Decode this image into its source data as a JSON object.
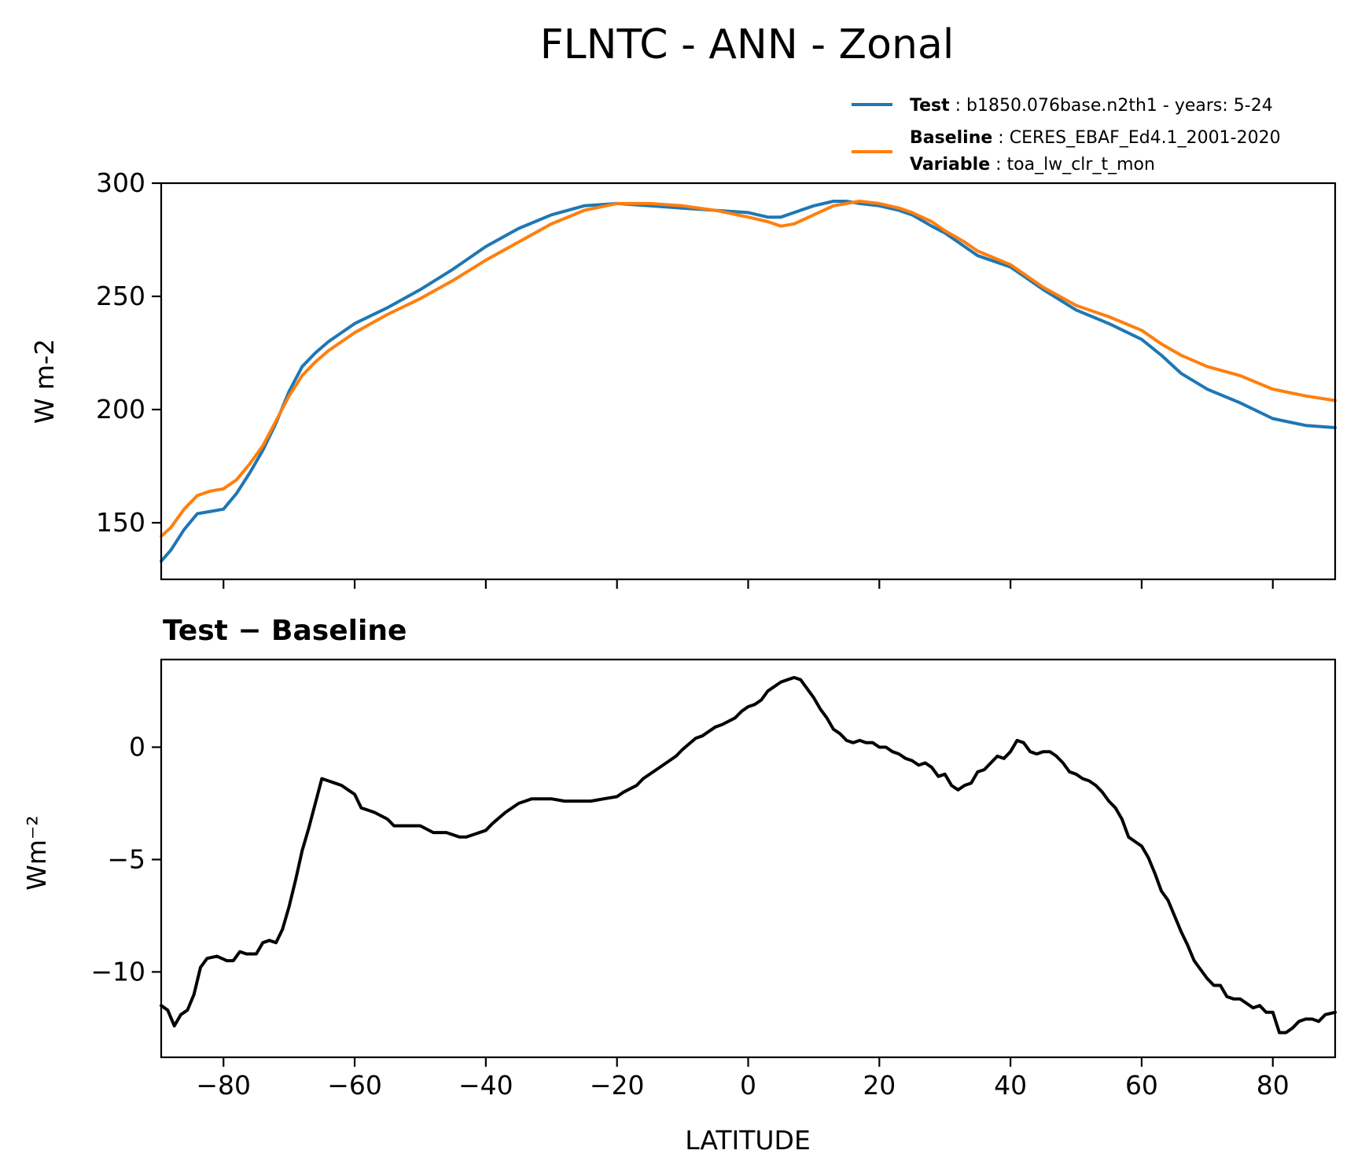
{
  "figure": {
    "title": "FLNTC - ANN - Zonal"
  },
  "legend": {
    "entries": [
      {
        "key": "Test",
        "sep": " : ",
        "text": "b1850.076base.n2th1 - years: 5-24",
        "color": "#1f77b4"
      },
      {
        "key": "Baseline",
        "sep": " : ",
        "text": "CERES_EBAF_Ed4.1_2001-2020",
        "color": "#ff7f0e"
      },
      {
        "key": "Variable",
        "sep": " : ",
        "text": "toa_lw_clr_t_mon"
      }
    ]
  },
  "chart_data": [
    {
      "type": "line",
      "ylabel": "W m-2",
      "xlim": [
        -89.5,
        89.5
      ],
      "ylim": [
        125,
        300
      ],
      "yticks": [
        150,
        200,
        250,
        300
      ],
      "xticks": [
        -80,
        -60,
        -40,
        -20,
        0,
        20,
        40,
        60,
        80
      ],
      "xticklabels_shown": false,
      "grid": false,
      "legend_position": "top-right (above plot)",
      "series": [
        {
          "name": "Test",
          "color": "#1f77b4",
          "x": [
            -89.5,
            -88,
            -86,
            -84,
            -82,
            -80,
            -78,
            -76,
            -74,
            -72,
            -70,
            -68,
            -66,
            -64,
            -62,
            -60,
            -55,
            -50,
            -45,
            -40,
            -35,
            -30,
            -25,
            -20,
            -15,
            -10,
            -5,
            0,
            3,
            5,
            7,
            10,
            13,
            15,
            17,
            20,
            23,
            25,
            28,
            30,
            33,
            35,
            40,
            45,
            50,
            55,
            60,
            63,
            66,
            70,
            75,
            80,
            85,
            89.5
          ],
          "y": [
            133,
            138,
            147,
            154,
            155,
            156,
            163,
            172,
            182,
            194,
            208,
            219,
            225,
            230,
            234,
            238,
            245,
            253,
            262,
            272,
            280,
            286,
            290,
            291,
            290,
            289,
            288,
            287,
            285,
            285,
            287,
            290,
            292,
            292,
            291,
            290,
            288,
            286,
            281,
            278,
            272,
            268,
            263,
            253,
            244,
            238,
            231,
            224,
            216,
            209,
            203,
            196,
            193,
            192
          ]
        },
        {
          "name": "Baseline",
          "color": "#ff7f0e",
          "x": [
            -89.5,
            -88,
            -86,
            -84,
            -82,
            -80,
            -78,
            -76,
            -74,
            -72,
            -70,
            -68,
            -66,
            -64,
            -62,
            -60,
            -55,
            -50,
            -45,
            -40,
            -35,
            -30,
            -25,
            -20,
            -15,
            -10,
            -5,
            0,
            3,
            5,
            7,
            10,
            13,
            15,
            17,
            20,
            23,
            25,
            28,
            30,
            33,
            35,
            40,
            45,
            50,
            55,
            60,
            63,
            66,
            70,
            75,
            80,
            85,
            89.5
          ],
          "y": [
            144,
            148,
            156,
            162,
            164,
            165,
            169,
            176,
            184,
            195,
            206,
            215,
            221,
            226,
            230,
            234,
            242,
            249,
            257,
            266,
            274,
            282,
            288,
            291,
            291,
            290,
            288,
            285,
            283,
            281,
            282,
            286,
            290,
            291,
            292,
            291,
            289,
            287,
            283,
            279,
            274,
            270,
            264,
            254,
            246,
            241,
            235,
            229,
            224,
            219,
            215,
            209,
            206,
            204
          ]
        }
      ]
    },
    {
      "type": "line",
      "title": "Test − Baseline",
      "xlabel": "LATITUDE",
      "ylabel": "Wm⁻²",
      "xlim": [
        -89.5,
        89.5
      ],
      "ylim": [
        -13.8,
        3.9
      ],
      "yticks": [
        0,
        -5,
        -10
      ],
      "xticks": [
        -80,
        -60,
        -40,
        -20,
        0,
        20,
        40,
        60,
        80
      ],
      "grid": false,
      "series": [
        {
          "color": "#000000",
          "x": [
            -89.5,
            -88.5,
            -87.5,
            -86.5,
            -85.5,
            -84.5,
            -83.5,
            -82.5,
            -81,
            -79.5,
            -78.5,
            -77.5,
            -76.5,
            -75,
            -74,
            -73,
            -72,
            -71,
            -70,
            -69,
            -68,
            -67,
            -66,
            -65,
            -64,
            -63,
            -62,
            -61,
            -60,
            -59,
            -58,
            -57,
            -55,
            -54,
            -52,
            -50,
            -48,
            -46,
            -44,
            -43,
            -42,
            -40,
            -39,
            -37,
            -35,
            -33,
            -30,
            -28,
            -26,
            -24,
            -22,
            -20,
            -19,
            -17,
            -16,
            -14,
            -13,
            -11,
            -10,
            -8,
            -7,
            -5,
            -4,
            -2,
            -1,
            0,
            1,
            2,
            3,
            4,
            5,
            6,
            7,
            8,
            9,
            10,
            11,
            12,
            13,
            14,
            15,
            16,
            17,
            18,
            19,
            20,
            21,
            22,
            23,
            24,
            25,
            26,
            27,
            28,
            29,
            30,
            31,
            32,
            33,
            34,
            35,
            36,
            37,
            38,
            39,
            40,
            41,
            42,
            43,
            44,
            45,
            46,
            47,
            48,
            49,
            50,
            51,
            52,
            53,
            54,
            55,
            56,
            57,
            58,
            59,
            60,
            61,
            62,
            63,
            64,
            65,
            66,
            67,
            68,
            69,
            70,
            71,
            72,
            73,
            74,
            75,
            76,
            77,
            78,
            79,
            80,
            81,
            82,
            83,
            84,
            85,
            86,
            87,
            88,
            89.5
          ],
          "y": [
            -11.5,
            -11.7,
            -12.4,
            -11.9,
            -11.7,
            -11,
            -9.8,
            -9.4,
            -9.3,
            -9.5,
            -9.5,
            -9.1,
            -9.2,
            -9.2,
            -8.7,
            -8.6,
            -8.7,
            -8.1,
            -7.1,
            -5.9,
            -4.6,
            -3.6,
            -2.5,
            -1.4,
            -1.5,
            -1.6,
            -1.7,
            -1.9,
            -2.1,
            -2.7,
            -2.8,
            -2.9,
            -3.2,
            -3.5,
            -3.5,
            -3.5,
            -3.8,
            -3.8,
            -4,
            -4,
            -3.9,
            -3.7,
            -3.4,
            -2.9,
            -2.5,
            -2.3,
            -2.3,
            -2.4,
            -2.4,
            -2.4,
            -2.3,
            -2.2,
            -2,
            -1.7,
            -1.4,
            -1,
            -0.8,
            -0.4,
            -0.1,
            0.4,
            0.5,
            0.9,
            1,
            1.3,
            1.6,
            1.8,
            1.9,
            2.1,
            2.5,
            2.7,
            2.9,
            3,
            3.1,
            3,
            2.6,
            2.2,
            1.7,
            1.3,
            0.8,
            0.6,
            0.3,
            0.2,
            0.3,
            0.2,
            0.2,
            0,
            0,
            -0.2,
            -0.3,
            -0.5,
            -0.6,
            -0.8,
            -0.7,
            -0.9,
            -1.3,
            -1.2,
            -1.7,
            -1.9,
            -1.7,
            -1.6,
            -1.1,
            -1,
            -0.7,
            -0.4,
            -0.5,
            -0.2,
            0.3,
            0.2,
            -0.2,
            -0.3,
            -0.2,
            -0.2,
            -0.4,
            -0.7,
            -1.1,
            -1.2,
            -1.4,
            -1.5,
            -1.7,
            -2,
            -2.4,
            -2.7,
            -3.2,
            -4,
            -4.2,
            -4.4,
            -4.9,
            -5.6,
            -6.4,
            -6.8,
            -7.5,
            -8.2,
            -8.8,
            -9.5,
            -9.9,
            -10.3,
            -10.6,
            -10.6,
            -11.1,
            -11.2,
            -11.2,
            -11.4,
            -11.6,
            -11.5,
            -11.8,
            -11.8,
            -12.7,
            -12.7,
            -12.5,
            -12.2,
            -12.1,
            -12.1,
            -12.2,
            -11.9,
            -11.8
          ]
        }
      ]
    }
  ]
}
